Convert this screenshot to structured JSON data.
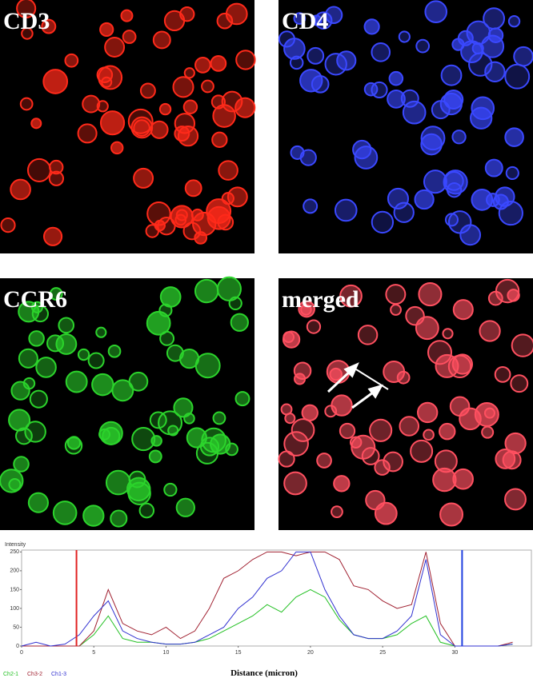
{
  "panels": [
    {
      "label": "CD3",
      "color": "#ff2a1a"
    },
    {
      "label": "CD4",
      "color": "#3a48ff"
    },
    {
      "label": "CCR6",
      "color": "#2cd42c"
    },
    {
      "label": "merged",
      "color": "#ff5060"
    }
  ],
  "chart_data": {
    "type": "line",
    "y_label": "Intensity",
    "x_label": "Distance (micron)",
    "x": [
      0,
      1,
      2,
      3,
      4,
      5,
      6,
      7,
      8,
      9,
      10,
      11,
      12,
      13,
      14,
      15,
      16,
      17,
      18,
      19,
      20,
      21,
      22,
      23,
      24,
      25,
      26,
      27,
      28,
      29,
      30,
      31,
      32,
      33,
      34
    ],
    "series": [
      {
        "name": "Ch2-1",
        "color": "#22c022",
        "values": [
          0,
          0,
          0,
          0,
          0,
          30,
          80,
          20,
          10,
          10,
          5,
          5,
          10,
          20,
          40,
          60,
          80,
          110,
          90,
          130,
          150,
          130,
          70,
          30,
          20,
          20,
          30,
          60,
          80,
          10,
          0,
          0,
          0,
          0,
          5
        ]
      },
      {
        "name": "Ch3-2",
        "color": "#a02030",
        "values": [
          0,
          0,
          0,
          0,
          0,
          40,
          150,
          60,
          40,
          30,
          50,
          20,
          40,
          100,
          180,
          200,
          230,
          250,
          250,
          240,
          250,
          250,
          230,
          160,
          150,
          120,
          100,
          110,
          250,
          60,
          0,
          0,
          0,
          0,
          10
        ]
      },
      {
        "name": "Ch1-3",
        "color": "#3030d0",
        "values": [
          0,
          10,
          0,
          5,
          30,
          80,
          120,
          40,
          20,
          10,
          5,
          5,
          10,
          30,
          50,
          100,
          130,
          180,
          200,
          250,
          250,
          150,
          80,
          30,
          20,
          20,
          40,
          80,
          230,
          30,
          0,
          0,
          0,
          0,
          5
        ]
      }
    ],
    "markers": [
      {
        "value": 3.8,
        "color": "#e02020"
      },
      {
        "value": 30.5,
        "color": "#2040e0"
      }
    ],
    "xlim": [
      0,
      35.3
    ],
    "ylim": [
      0,
      255
    ],
    "xticks": [
      0,
      5,
      10,
      15,
      20,
      25,
      30
    ],
    "yticks": [
      0,
      50,
      100,
      150,
      200,
      250
    ]
  }
}
